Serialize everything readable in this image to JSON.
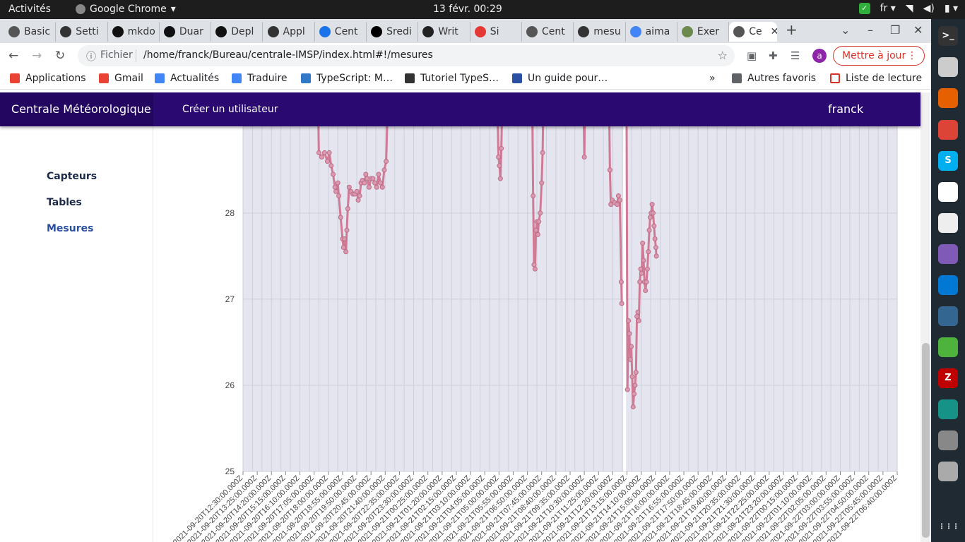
{
  "os": {
    "activities": "Activités",
    "app_name": "Google Chrome",
    "clock": "13 févr.  00:29",
    "lang": "fr"
  },
  "tabs": [
    {
      "label": "Basic",
      "color": "#555"
    },
    {
      "label": "Setti",
      "color": "#333"
    },
    {
      "label": "mkdo",
      "color": "#111"
    },
    {
      "label": "Duar",
      "color": "#111"
    },
    {
      "label": "Depl",
      "color": "#111"
    },
    {
      "label": "Appl",
      "color": "#333"
    },
    {
      "label": "Cent",
      "color": "#1a73e8"
    },
    {
      "label": "Sredi",
      "color": "#000"
    },
    {
      "label": "Writ",
      "color": "#222"
    },
    {
      "label": "Si",
      "color": "#e53935"
    },
    {
      "label": "Cent",
      "color": "#555"
    },
    {
      "label": "mesu",
      "color": "#333"
    },
    {
      "label": "aima",
      "color": "#4285f4"
    },
    {
      "label": "Exer",
      "color": "#6d8a4e"
    },
    {
      "label": "Ce",
      "color": "#555"
    }
  ],
  "toolbar": {
    "scheme": "Fichier",
    "url": "/home/franck/Bureau/centrale-IMSP/index.html#!/mesures",
    "avatar_letter": "a",
    "update_label": "Mettre à jour"
  },
  "bookmarks": [
    {
      "label": "Applications",
      "color": "#ea4335"
    },
    {
      "label": "Gmail",
      "color": "#ea4335"
    },
    {
      "label": "Actualités",
      "color": "#4285f4"
    },
    {
      "label": "Traduire",
      "color": "#4285f4"
    },
    {
      "label": "TypeScript: M…",
      "color": "#3178c6"
    },
    {
      "label": "Tutoriel TypeS…",
      "color": "#333"
    },
    {
      "label": "Un guide pour…",
      "color": "#2b4fa3"
    }
  ],
  "bookmarks_right": {
    "more": "»",
    "other": "Autres favoris",
    "reading": "Liste de lecture"
  },
  "app": {
    "brand": "Centrale Météorologique",
    "create_user": "Créer un utilisateur",
    "user": "franck",
    "sidebar": [
      "Capteurs",
      "Tables",
      "Mesures"
    ],
    "active_index": 2,
    "accent": "#2a0970"
  },
  "chart_data": {
    "type": "line",
    "ylim": [
      25,
      29.4
    ],
    "yticks": [
      25,
      26,
      27,
      28
    ],
    "x_labels": [
      "2021-09-20T12:30:00.000Z",
      "2021-09-20T13:25:00.000Z",
      "2021-09-20T14:20:00.000Z",
      "2021-09-20T15:15:00.000Z",
      "2021-09-20T16:10:00.000Z",
      "2021-09-20T17:05:00.000Z",
      "2021-09-20T18:00:00.000Z",
      "2021-09-20T18:55:00.000Z",
      "2021-09-20T19:50:00.000Z",
      "2021-09-20T20:45:00.000Z",
      "2021-09-20T21:40:00.000Z",
      "2021-09-20T22:35:00.000Z",
      "2021-09-20T23:30:00.000Z",
      "2021-09-21T00:25:00.000Z",
      "2021-09-21T01:20:00.000Z",
      "2021-09-21T02:15:00.000Z",
      "2021-09-21T03:10:00.000Z",
      "2021-09-21T04:05:00.000Z",
      "2021-09-21T05:00:00.000Z",
      "2021-09-21T05:55:00.000Z",
      "2021-09-21T06:50:00.000Z",
      "2021-09-21T07:45:00.000Z",
      "2021-09-21T08:40:00.000Z",
      "2021-09-21T09:35:00.000Z",
      "2021-09-21T10:30:00.000Z",
      "2021-09-21T11:25:00.000Z",
      "2021-09-21T12:20:00.000Z",
      "2021-09-21T13:15:00.000Z",
      "2021-09-21T14:10:00.000Z",
      "2021-09-21T15:05:00.000Z",
      "2021-09-21T16:00:00.000Z",
      "2021-09-21T16:55:00.000Z",
      "2021-09-21T17:50:00.000Z",
      "2021-09-21T18:45:00.000Z",
      "2021-09-21T19:40:00.000Z",
      "2021-09-21T20:35:00.000Z",
      "2021-09-21T21:30:00.000Z",
      "2021-09-21T22:25:00.000Z",
      "2021-09-21T23:20:00.000Z",
      "2021-09-22T00:15:00.000Z",
      "2021-09-22T01:10:00.000Z",
      "2021-09-22T02:05:00.000Z",
      "2021-09-22T03:00:00.000Z",
      "2021-09-22T03:55:00.000Z",
      "2021-09-22T04:50:00.000Z",
      "2021-09-22T05:45:00.000Z",
      "2021-09-22T06:40:00.000Z"
    ],
    "series": [
      {
        "color": "#d07a95",
        "points": [
          [
            7.9,
            29.4
          ],
          [
            8.0,
            28.7
          ],
          [
            8.3,
            28.65
          ],
          [
            8.6,
            28.7
          ],
          [
            8.9,
            28.6
          ],
          [
            9.1,
            28.7
          ],
          [
            9.3,
            28.55
          ],
          [
            9.5,
            28.45
          ],
          [
            9.7,
            28.3
          ],
          [
            9.8,
            28.25
          ],
          [
            10.0,
            28.35
          ],
          [
            10.1,
            28.2
          ],
          [
            10.3,
            27.95
          ],
          [
            10.5,
            27.7
          ],
          [
            10.6,
            27.6
          ],
          [
            10.7,
            27.7
          ],
          [
            10.85,
            27.55
          ],
          [
            10.95,
            27.8
          ],
          [
            11.05,
            28.05
          ],
          [
            11.2,
            28.3
          ],
          [
            11.4,
            28.25
          ],
          [
            11.6,
            28.22
          ],
          [
            11.8,
            28.22
          ],
          [
            12.0,
            28.25
          ],
          [
            12.15,
            28.15
          ],
          [
            12.3,
            28.2
          ],
          [
            12.45,
            28.35
          ],
          [
            12.6,
            28.38
          ],
          [
            12.8,
            28.35
          ],
          [
            12.95,
            28.45
          ],
          [
            13.1,
            28.4
          ],
          [
            13.3,
            28.3
          ],
          [
            13.5,
            28.4
          ],
          [
            13.7,
            28.4
          ],
          [
            13.9,
            28.35
          ],
          [
            14.1,
            28.3
          ],
          [
            14.3,
            28.45
          ],
          [
            14.5,
            28.35
          ],
          [
            14.7,
            28.3
          ],
          [
            14.9,
            28.5
          ],
          [
            15.1,
            28.6
          ],
          [
            15.3,
            29.4
          ],
          [
            26.8,
            29.4
          ],
          [
            26.95,
            28.65
          ],
          [
            27.05,
            28.55
          ],
          [
            27.15,
            28.4
          ],
          [
            27.25,
            28.75
          ],
          [
            27.35,
            29.4
          ],
          [
            30.5,
            29.4
          ],
          [
            30.6,
            28.2
          ],
          [
            30.7,
            27.4
          ],
          [
            30.8,
            27.35
          ],
          [
            30.9,
            27.8
          ],
          [
            31.0,
            27.9
          ],
          [
            31.1,
            27.75
          ],
          [
            31.2,
            27.9
          ],
          [
            31.35,
            28.0
          ],
          [
            31.5,
            28.35
          ],
          [
            31.6,
            28.7
          ],
          [
            31.7,
            29.4
          ],
          [
            35.9,
            29.4
          ],
          [
            36.0,
            28.65
          ],
          [
            36.1,
            29.4
          ],
          [
            38.6,
            29.4
          ],
          [
            38.7,
            28.5
          ],
          [
            38.8,
            28.1
          ],
          [
            38.95,
            28.15
          ],
          [
            39.2,
            28.12
          ],
          [
            39.45,
            28.1
          ],
          [
            39.6,
            28.2
          ],
          [
            39.75,
            28.15
          ],
          [
            39.9,
            27.2
          ],
          [
            39.95,
            26.95
          ]
        ]
      },
      {
        "color": "#d07a95",
        "points": [
          [
            40.45,
            29.4
          ],
          [
            40.55,
            25.95
          ],
          [
            40.65,
            26.75
          ],
          [
            40.75,
            26.6
          ],
          [
            40.85,
            26.3
          ],
          [
            40.95,
            26.45
          ],
          [
            41.05,
            26.1
          ],
          [
            41.15,
            25.75
          ],
          [
            41.25,
            25.9
          ],
          [
            41.35,
            26.0
          ],
          [
            41.45,
            26.15
          ],
          [
            41.55,
            26.8
          ],
          [
            41.65,
            26.85
          ],
          [
            41.75,
            26.75
          ],
          [
            41.85,
            27.2
          ],
          [
            41.95,
            27.35
          ],
          [
            42.05,
            27.3
          ],
          [
            42.15,
            27.65
          ],
          [
            42.25,
            27.45
          ],
          [
            42.35,
            27.2
          ],
          [
            42.45,
            27.1
          ],
          [
            42.55,
            27.2
          ],
          [
            42.65,
            27.35
          ],
          [
            42.75,
            27.55
          ],
          [
            42.85,
            27.8
          ],
          [
            42.95,
            27.95
          ],
          [
            43.05,
            28.0
          ],
          [
            43.15,
            28.1
          ],
          [
            43.25,
            28.0
          ],
          [
            43.35,
            27.85
          ],
          [
            43.45,
            27.7
          ],
          [
            43.55,
            27.6
          ],
          [
            43.6,
            27.5
          ]
        ]
      }
    ]
  }
}
